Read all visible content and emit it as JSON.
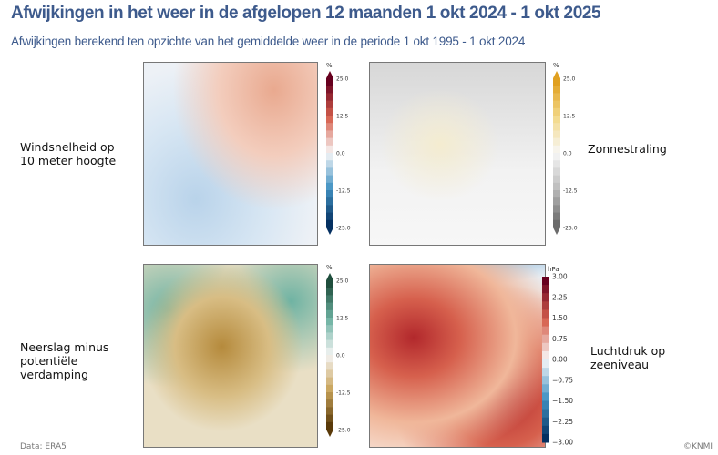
{
  "title": "Afwijkingen in het weer in de afgelopen 12 maanden 1 okt 2024 - 1 okt 2025",
  "subtitle": "Afwijkingen berekend ten opzichte van het gemiddelde weer in de periode 1 okt 1995 - 1 okt 2024",
  "panels": [
    {
      "label": [
        "Windsnelheid op",
        "10 meter hoogte"
      ],
      "unit": "%",
      "ticks": [
        "25.0",
        "12.5",
        "0.0",
        "-12.5",
        "-25.0"
      ],
      "colors": [
        "#67001f",
        "#d6604d",
        "#f7f7f7",
        "#4393c3",
        "#053061"
      ]
    },
    {
      "label": [
        "Zonnestraling"
      ],
      "unit": "%",
      "ticks": [
        "25.0",
        "12.5",
        "0.0",
        "-12.5",
        "-25.0"
      ],
      "colors": [
        "#e0a020",
        "#f3d98a",
        "#f7f7f7",
        "#bdbdbd",
        "#6b6b6b"
      ]
    },
    {
      "label": [
        "Neerslag minus",
        "potentiële",
        "verdamping"
      ],
      "unit": "%",
      "ticks": [
        "25.0",
        "12.5",
        "0.0",
        "-12.5",
        "-25.0"
      ],
      "colors": [
        "#1f4e3d",
        "#6fb3a3",
        "#f5f5f5",
        "#c9a45a",
        "#5a3a0a"
      ]
    },
    {
      "label": [
        "Luchtdruk op",
        "zeeniveau"
      ],
      "unit": "hPa",
      "ticks": [
        "3.00",
        "2.25",
        "1.50",
        "0.75",
        "0.00",
        "−0.75",
        "−1.50",
        "−2.25",
        "−3.00"
      ],
      "colors": [
        "#67001f",
        "#d6604d",
        "#f7f7f7",
        "#4393c3",
        "#053061"
      ]
    }
  ],
  "footer": {
    "source": "Data: ERA5",
    "credit": "©KNMI"
  }
}
